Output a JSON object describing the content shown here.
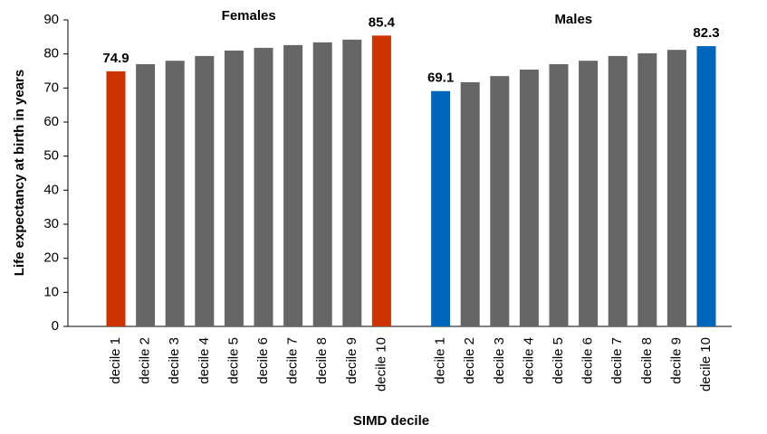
{
  "chart_data": {
    "type": "bar",
    "y_label": "Life expectancy at birth in years",
    "x_label": "SIMD decile",
    "ylim": [
      0,
      90
    ],
    "yticks": [
      0,
      10,
      20,
      30,
      40,
      50,
      60,
      70,
      80,
      90
    ],
    "groups": [
      {
        "name": "Females",
        "categories": [
          "decile 1",
          "decile 2",
          "decile 3",
          "decile 4",
          "decile 5",
          "decile 6",
          "decile 7",
          "decile 8",
          "decile 9",
          "decile 10"
        ],
        "values": [
          74.9,
          77.0,
          78.0,
          79.4,
          81.0,
          81.8,
          82.6,
          83.4,
          84.2,
          85.4
        ],
        "colors": [
          "#cc3300",
          "#666666",
          "#666666",
          "#666666",
          "#666666",
          "#666666",
          "#666666",
          "#666666",
          "#666666",
          "#cc3300"
        ],
        "labelled_bars": [
          0,
          9
        ]
      },
      {
        "name": "Males",
        "categories": [
          "decile 1",
          "decile 2",
          "decile 3",
          "decile 4",
          "decile 5",
          "decile 6",
          "decile 7",
          "decile 8",
          "decile 9",
          "decile 10"
        ],
        "values": [
          69.1,
          71.7,
          73.5,
          75.4,
          77.0,
          78.0,
          79.4,
          80.2,
          81.2,
          82.3
        ],
        "colors": [
          "#0066bb",
          "#666666",
          "#666666",
          "#666666",
          "#666666",
          "#666666",
          "#666666",
          "#666666",
          "#666666",
          "#0066bb"
        ],
        "labelled_bars": [
          0,
          9
        ]
      }
    ]
  }
}
